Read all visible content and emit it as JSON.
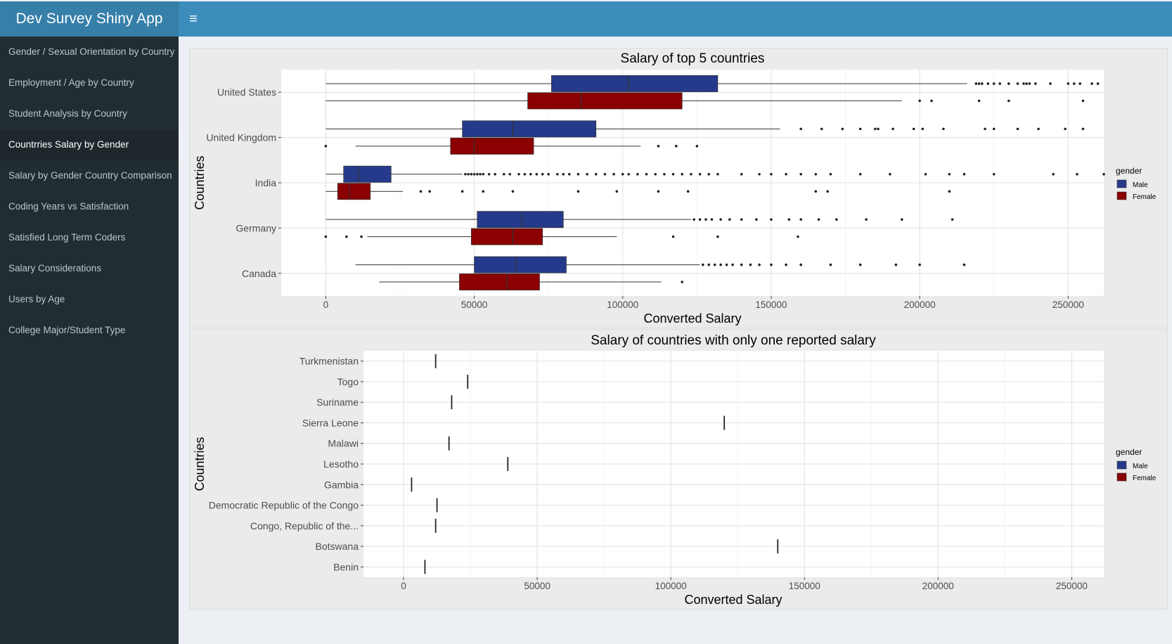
{
  "header": {
    "brand": "Dev Survey Shiny App",
    "toggle_icon": "hamburger-icon"
  },
  "sidebar": {
    "items": [
      {
        "label": "Gender / Sexual Orientation by Country"
      },
      {
        "label": "Employment / Age by Country"
      },
      {
        "label": "Student Analysis by Country"
      },
      {
        "label": "Countrries Salary by Gender",
        "active": true
      },
      {
        "label": "Salary by Gender Country Comparison"
      },
      {
        "label": "Coding Years vs Satisfaction"
      },
      {
        "label": "Satisfied Long Term Coders"
      },
      {
        "label": "Salary Considerations"
      },
      {
        "label": "Users by Age"
      },
      {
        "label": "College Major/Student Type"
      }
    ]
  },
  "colors": {
    "male": "#253a8a",
    "female": "#8b0000",
    "panel_bg": "#ebebeb",
    "header": "#3c8dbc"
  },
  "chart_data": [
    {
      "type": "boxplot",
      "title": "Salary of top 5 countries",
      "xlabel": "Converted Salary",
      "ylabel": "Countries",
      "xlim": [
        -15000,
        262000
      ],
      "x_ticks": [
        0,
        50000,
        100000,
        150000,
        200000,
        250000
      ],
      "tick_labels": [
        "0",
        "50000",
        "100000",
        "150000",
        "200000",
        "250000"
      ],
      "legend": {
        "title": "gender",
        "entries": [
          "Male",
          "Female"
        ],
        "position": "right"
      },
      "categories": [
        "United States",
        "United Kingdom",
        "India",
        "Germany",
        "Canada"
      ],
      "series": [
        {
          "name": "Male",
          "boxes": [
            {
              "min": 0,
              "q1": 76000,
              "median": 102000,
              "q3": 132000,
              "max": 216000,
              "outliers": [
                219000,
                220000,
                221000,
                223000,
                225000,
                227000,
                230000,
                233000,
                235000,
                236000,
                237000,
                239000,
                244000,
                250000,
                252000,
                254000,
                258000,
                260000
              ]
            },
            {
              "min": 0,
              "q1": 46000,
              "median": 63000,
              "q3": 91000,
              "max": 153000,
              "outliers": [
                160000,
                167000,
                174000,
                180000,
                185000,
                186000,
                191000,
                198000,
                201000,
                208000,
                222000,
                225000,
                233000,
                240000,
                249000,
                255000
              ]
            },
            {
              "min": 0,
              "q1": 6000,
              "median": 11000,
              "q3": 22000,
              "max": 46000,
              "outliers": [
                47000,
                48000,
                49000,
                50000,
                51000,
                52000,
                53000,
                55000,
                57000,
                60000,
                62000,
                65000,
                67000,
                69000,
                71000,
                73000,
                75000,
                78000,
                80000,
                82000,
                85000,
                88000,
                91000,
                94000,
                97000,
                100000,
                102000,
                105000,
                108000,
                111000,
                114000,
                117000,
                120000,
                123000,
                126000,
                129000,
                132000,
                140000,
                146000,
                150000,
                155000,
                160000,
                165000,
                170000,
                180000,
                190000,
                202000,
                210000,
                215000,
                225000,
                245000,
                253000,
                262000
              ]
            },
            {
              "min": 0,
              "q1": 51000,
              "median": 66000,
              "q3": 80000,
              "max": 123000,
              "outliers": [
                124000,
                126000,
                128000,
                130000,
                133000,
                136000,
                140000,
                145000,
                150000,
                156000,
                160000,
                166000,
                172000,
                182000,
                194000,
                211000
              ]
            },
            {
              "min": 10000,
              "q1": 50000,
              "median": 64000,
              "q3": 81000,
              "max": 126000,
              "outliers": [
                127000,
                129000,
                131000,
                133000,
                135000,
                137000,
                140000,
                143000,
                146000,
                150000,
                155000,
                160000,
                170000,
                180000,
                192000,
                200000,
                215000
              ]
            }
          ]
        },
        {
          "name": "Female",
          "boxes": [
            {
              "min": 0,
              "q1": 68000,
              "median": 86000,
              "q3": 120000,
              "max": 194000,
              "outliers": [
                200000,
                204000,
                220000,
                230000,
                255000
              ]
            },
            {
              "min": 10000,
              "q1": 42000,
              "median": 50000,
              "q3": 70000,
              "max": 106000,
              "outliers": [
                0,
                112000,
                118000,
                125000
              ]
            },
            {
              "min": 0,
              "q1": 4000,
              "median": 8000,
              "q3": 15000,
              "max": 26000,
              "outliers": [
                32000,
                35000,
                46000,
                53000,
                63000,
                85000,
                98000,
                112000,
                122000,
                165000,
                169000,
                210000
              ]
            },
            {
              "min": 14000,
              "q1": 49000,
              "median": 63000,
              "q3": 73000,
              "max": 98000,
              "outliers": [
                0,
                7000,
                12000,
                117000,
                132000,
                159000
              ]
            },
            {
              "min": 18000,
              "q1": 45000,
              "median": 61000,
              "q3": 72000,
              "max": 113000,
              "outliers": [
                120000
              ]
            }
          ]
        }
      ]
    },
    {
      "type": "boxplot",
      "title": "Salary of countries with only one reported salary",
      "xlabel": "Converted Salary",
      "ylabel": "Countries",
      "xlim": [
        -15000,
        262000
      ],
      "x_ticks": [
        0,
        50000,
        100000,
        150000,
        200000,
        250000
      ],
      "tick_labels": [
        "0",
        "50000",
        "100000",
        "150000",
        "200000",
        "250000"
      ],
      "legend": {
        "title": "gender",
        "entries": [
          "Male",
          "Female"
        ],
        "position": "right"
      },
      "categories": [
        "Turkmenistan",
        "Togo",
        "Suriname",
        "Sierra Leone",
        "Malawi",
        "Lesotho",
        "Gambia",
        "Democratic Republic of the Congo",
        "Congo, Republic of the...",
        "Botswana",
        "Benin"
      ],
      "series": [
        {
          "name": "Male",
          "values": [
            12000,
            24000,
            18000,
            120000,
            17000,
            39000,
            3000,
            12500,
            12000,
            140000,
            8000
          ]
        }
      ]
    }
  ]
}
